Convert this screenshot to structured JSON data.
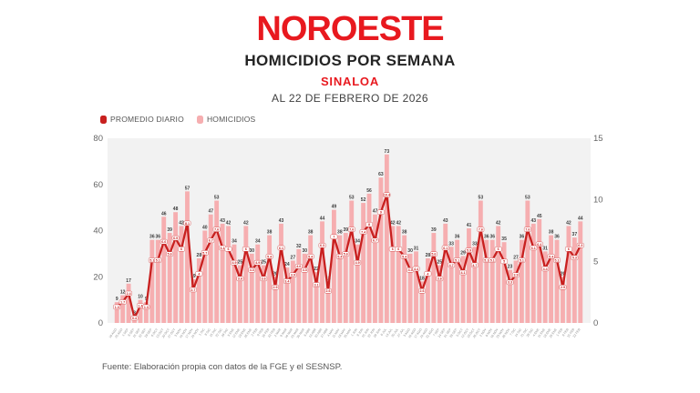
{
  "header": {
    "logo": "NOROESTE",
    "title": "HOMICIDIOS POR SEMANA",
    "region": "SINALOA",
    "date_line": "AL 22 DE FEBRERO DE 2026"
  },
  "legend": {
    "items": [
      {
        "label": "PROMEDIO DIARIO",
        "color": "#c8201f"
      },
      {
        "label": "HOMICIDIOS",
        "color": "#f6aeb0"
      }
    ]
  },
  "footer": {
    "source": "Fuente: Elaboración propia con datos de la FGE y el SESNSP."
  },
  "colors": {
    "brand_red": "#e8191f",
    "line_red": "#c8201f",
    "bar_pink": "#f6aeb0",
    "plot_background": "#f2f2f2",
    "bar_label": "#3b3b3b",
    "axis_text": "#666666",
    "tick_text": "#8a8a8a"
  },
  "chart_data": {
    "type": "bar",
    "subtype": "bar-line-combo",
    "title": "HOMICIDIOS POR SEMANA",
    "region": "SINALOA",
    "as_of": "AL 22 DE FEBRERO DE 2026",
    "legend_position": "top-left",
    "grid": false,
    "categories": [
      "18 AGO",
      "25 AGO",
      "1 SEP",
      "8 SEP",
      "15 SEP",
      "22 SEP",
      "29 SEP",
      "6 OCT",
      "13 OCT",
      "20 OCT",
      "27 OCT",
      "3 NOV",
      "10 NOV",
      "17 NOV",
      "24 NOV",
      "1 DIC",
      "8 DIC",
      "15 DIC",
      "22 DIC",
      "29 DIC",
      "5 ENE",
      "12 ENE",
      "19 ENE",
      "26 ENE",
      "2 FEB",
      "9 FEB",
      "16 FEB",
      "23 FEB",
      "2 MAR",
      "9 MAR",
      "16 MAR",
      "23 MAR",
      "30 MAR",
      "6 ABR",
      "13 ABR",
      "20 ABR",
      "27 ABR",
      "4 MAY",
      "11 MAY",
      "18 MAY",
      "25 MAY",
      "1 JUN",
      "8 JUN",
      "15 JUN",
      "22 JUN",
      "29 JUN",
      "6 JUL",
      "13 JUL",
      "20 JUL",
      "27 JUL",
      "3 AGO",
      "10 AGO",
      "17 AGO",
      "24 AGO",
      "31 AGO",
      "7 SEP",
      "14 SEP",
      "21 SEP",
      "28 SEP",
      "5 OCT",
      "12 OCT",
      "19 OCT",
      "26 OCT",
      "2 NOV",
      "9 NOV",
      "16 NOV",
      "23 NOV",
      "30 NOV",
      "7 DIC",
      "14 DIC",
      "21 DIC",
      "28 DIC",
      "4 ENE",
      "11 ENE",
      "18 ENE",
      "25 ENE",
      "1 FEB",
      "8 FEB",
      "15 FEB",
      "22 FEB"
    ],
    "series": [
      {
        "name": "HOMICIDIOS",
        "type": "bar",
        "axis": "left",
        "color": "#f6aeb0",
        "values": [
          9,
          12,
          17,
          3,
          10,
          9,
          36,
          36,
          46,
          39,
          48,
          42,
          57,
          19,
          28,
          40,
          47,
          53,
          43,
          42,
          34,
          25,
          42,
          30,
          34,
          25,
          38,
          20,
          43,
          24,
          27,
          32,
          30,
          38,
          22,
          44,
          18,
          49,
          38,
          39,
          53,
          34,
          52,
          56,
          47,
          63,
          73,
          42,
          42,
          38,
          30,
          31,
          18,
          28,
          39,
          25,
          43,
          33,
          36,
          29,
          41,
          33,
          53,
          36,
          36,
          42,
          35,
          23,
          27,
          36,
          53,
          43,
          45,
          31,
          38,
          36,
          20,
          42,
          37,
          44
        ]
      },
      {
        "name": "PROMEDIO DIARIO",
        "type": "line",
        "axis": "right",
        "color": "#c8201f",
        "values": [
          1.3,
          1.7,
          2.4,
          0.4,
          1.4,
          1.3,
          5.1,
          5.1,
          6.6,
          5.6,
          6.9,
          6,
          8.1,
          2.7,
          4,
          5.7,
          6.7,
          7.6,
          6.1,
          6,
          4.9,
          3.6,
          6,
          4.3,
          4.9,
          3.6,
          5.4,
          2.9,
          6.1,
          3.4,
          3.9,
          4.6,
          4.3,
          5.4,
          3.1,
          6.3,
          2.6,
          7,
          5.4,
          5.6,
          7.6,
          4.9,
          7.4,
          8,
          6.7,
          9,
          10.4,
          6,
          6,
          5.4,
          4.3,
          4.4,
          2.6,
          4,
          5.6,
          3.6,
          6.1,
          4.7,
          5.1,
          4.1,
          5.9,
          4.7,
          7.6,
          5.1,
          5.1,
          6,
          5,
          3.3,
          3.9,
          5.1,
          7.6,
          6.1,
          6.4,
          4.4,
          5.4,
          5.1,
          2.9,
          6,
          5.3,
          6.3
        ]
      }
    ],
    "left_axis": {
      "label": "",
      "range": [
        0,
        80
      ],
      "ticks": [
        0,
        20,
        40,
        60,
        80
      ]
    },
    "right_axis": {
      "label": "",
      "range": [
        0,
        15
      ],
      "ticks": [
        0,
        5,
        10,
        15
      ]
    }
  }
}
